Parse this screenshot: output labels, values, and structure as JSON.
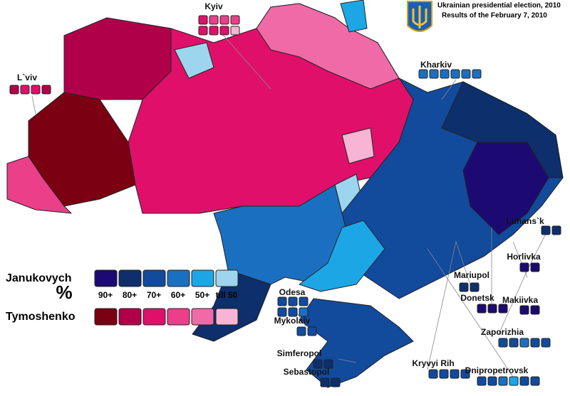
{
  "header": {
    "title": "Ukrainian presidential election, 2010",
    "subtitle": "Results of the February 7, 2010"
  },
  "legend": {
    "symbol": "%",
    "levels": [
      "90+",
      "80+",
      "70+",
      "60+",
      "50+",
      "till 50"
    ],
    "candidates": [
      {
        "name": "Janukovych",
        "colors": [
          "#1c0a72",
          "#0d2f6b",
          "#124a9c",
          "#1b6fc0",
          "#1ca6e6",
          "#9dd5ee"
        ]
      },
      {
        "name": "Tymoshenko",
        "colors": [
          "#7a0012",
          "#b0004a",
          "#e0106a",
          "#ec3f8a",
          "#f06aa8",
          "#f8b4d4"
        ]
      }
    ]
  },
  "cities": [
    {
      "label": "Kyiv",
      "squares": [
        "#e0106a",
        "#ec3f8a",
        "#ec3f8a",
        "#ec3f8a",
        "#e0106a",
        "#e0106a",
        "#e0106a",
        "#f8b4d4"
      ]
    },
    {
      "label": "L`viv",
      "squares": [
        "#b0004a",
        "#e0106a",
        "#e0106a",
        "#b0004a"
      ]
    },
    {
      "label": "Kharkiv",
      "squares": [
        "#1b6fc0",
        "#1b6fc0",
        "#1b6fc0",
        "#1b6fc0",
        "#1b6fc0",
        "#1b6fc0"
      ]
    },
    {
      "label": "Luhans`k",
      "squares": [
        "#0d2f6b",
        "#0d2f6b"
      ]
    },
    {
      "label": "Horlivka",
      "squares": [
        "#1c0a72",
        "#1c0a72"
      ]
    },
    {
      "label": "Mariupol",
      "squares": [
        "#0d2f6b",
        "#0d2f6b"
      ]
    },
    {
      "label": "Donetsk",
      "squares": [
        "#1c0a72",
        "#1c0a72",
        "#1c0a72"
      ]
    },
    {
      "label": "Makiivka",
      "squares": [
        "#1c0a72",
        "#1c0a72"
      ]
    },
    {
      "label": "Odesa",
      "squares": [
        "#124a9c",
        "#124a9c",
        "#124a9c",
        "#124a9c",
        "#124a9c",
        "#1b6fc0"
      ]
    },
    {
      "label": "Mykolaiv",
      "squares": [
        "#124a9c",
        "#124a9c"
      ]
    },
    {
      "label": "Zaporizhia",
      "squares": [
        "#124a9c",
        "#124a9c",
        "#1b6fc0",
        "#124a9c",
        "#124a9c"
      ]
    },
    {
      "label": "Simferopol",
      "squares": [
        "#0d2f6b",
        "#0d2f6b"
      ]
    },
    {
      "label": "Kryvyi Rih",
      "squares": [
        "#124a9c",
        "#124a9c",
        "#124a9c",
        "#124a9c"
      ]
    },
    {
      "label": "Sebastopol",
      "squares": [
        "#0d2f6b",
        "#0d2f6b"
      ]
    },
    {
      "label": "Dnipropetrovsk",
      "squares": [
        "#124a9c",
        "#124a9c",
        "#1b6fc0",
        "#1ca6e6",
        "#124a9c",
        "#124a9c"
      ]
    }
  ]
}
